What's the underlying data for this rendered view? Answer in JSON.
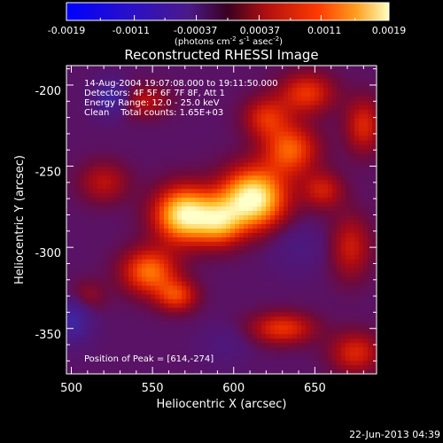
{
  "colorbar": {
    "tick_labels": [
      "-0.0019",
      "-0.0011",
      "-0.00037",
      "0.00037",
      "0.0011",
      "0.0019"
    ],
    "unit_label_main": "(photons cm",
    "unit_sup1": "-2",
    "unit_mid": " s",
    "unit_sup2": "-1",
    "unit_mid2": " asec",
    "unit_sup3": "-2",
    "unit_end": ")",
    "range": [
      -0.0019,
      0.0019
    ]
  },
  "annotations": {
    "time_range": "14-Aug-2004 19:07:08.000 to 19:11:50.000",
    "detectors": "Detectors: 4F 5F 6F 7F 8F, Att 1",
    "energy": "Energy Range: 12.0 - 25.0 keV",
    "clean": "Clean    Total counts: 1.65E+03",
    "peak": "Position of Peak = [614,-274]"
  },
  "footer": {
    "timestamp": "22-Jun-2013 04:39"
  },
  "chart_data": {
    "type": "heatmap",
    "title": "Reconstructed RHESSI Image",
    "xlabel": "Heliocentric X (arcsec)",
    "ylabel": "Heliocentric Y (arcsec)",
    "xlim": [
      497,
      688
    ],
    "ylim": [
      -378,
      -188
    ],
    "x_ticks": [
      500,
      550,
      600,
      650
    ],
    "y_ticks": [
      -200,
      -250,
      -300,
      -350
    ],
    "peak": [
      614,
      -274
    ],
    "blobs": [
      {
        "x": 612,
        "y": -270,
        "sx": 14,
        "sy": 13,
        "amp": 1.0
      },
      {
        "x": 570,
        "y": -280,
        "sx": 13,
        "sy": 12,
        "amp": 0.95
      },
      {
        "x": 592,
        "y": -285,
        "sx": 10,
        "sy": 10,
        "amp": 0.55
      },
      {
        "x": 548,
        "y": -315,
        "sx": 12,
        "sy": 10,
        "amp": 0.6
      },
      {
        "x": 565,
        "y": -330,
        "sx": 9,
        "sy": 7,
        "amp": 0.45
      },
      {
        "x": 635,
        "y": -240,
        "sx": 12,
        "sy": 11,
        "amp": 0.55
      },
      {
        "x": 645,
        "y": -205,
        "sx": 12,
        "sy": 9,
        "amp": 0.45
      },
      {
        "x": 620,
        "y": -220,
        "sx": 10,
        "sy": 9,
        "amp": 0.4
      },
      {
        "x": 680,
        "y": -225,
        "sx": 8,
        "sy": 12,
        "amp": 0.4
      },
      {
        "x": 545,
        "y": -210,
        "sx": 11,
        "sy": 7,
        "amp": 0.3
      },
      {
        "x": 520,
        "y": -260,
        "sx": 11,
        "sy": 9,
        "amp": 0.3
      },
      {
        "x": 655,
        "y": -265,
        "sx": 9,
        "sy": 8,
        "amp": 0.35
      },
      {
        "x": 672,
        "y": -300,
        "sx": 9,
        "sy": 14,
        "amp": 0.35
      },
      {
        "x": 630,
        "y": -350,
        "sx": 14,
        "sy": 7,
        "amp": 0.45
      },
      {
        "x": 675,
        "y": -365,
        "sx": 11,
        "sy": 9,
        "amp": 0.4
      },
      {
        "x": 510,
        "y": -330,
        "sx": 8,
        "sy": 7,
        "amp": 0.2
      },
      {
        "x": 525,
        "y": -208,
        "sx": 7,
        "sy": 7,
        "amp": -0.45
      },
      {
        "x": 500,
        "y": -345,
        "sx": 8,
        "sy": 9,
        "amp": -0.45
      },
      {
        "x": 640,
        "y": -300,
        "sx": 12,
        "sy": 10,
        "amp": -0.15
      },
      {
        "x": 595,
        "y": -360,
        "sx": 10,
        "sy": 8,
        "amp": -0.12
      }
    ]
  }
}
